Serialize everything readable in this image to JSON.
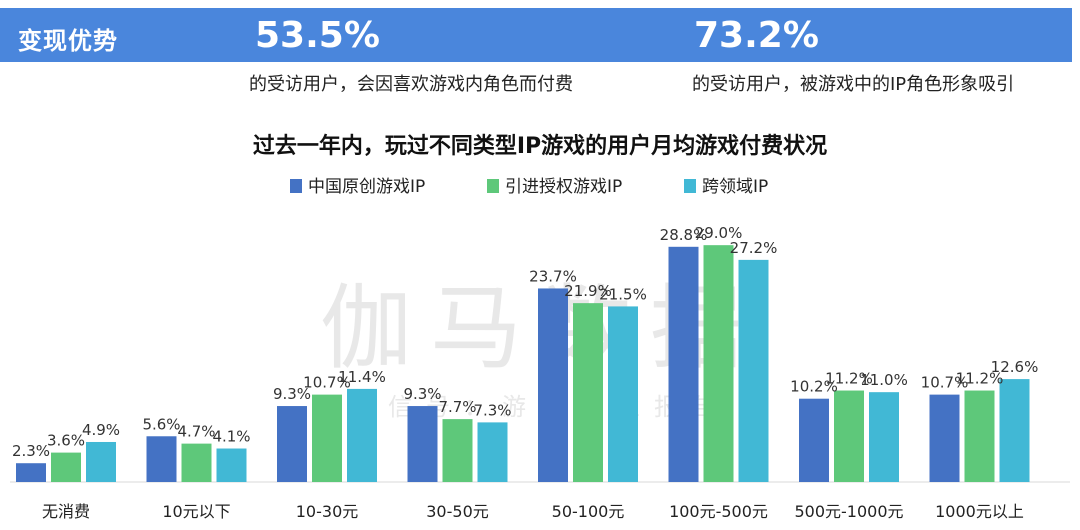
{
  "banner": {
    "title": "变现优势",
    "stat_1": {
      "value": "53.5%",
      "desc": "的受访用户，会因喜欢游戏内角色而付费"
    },
    "stat_2": {
      "value": "73.2%",
      "desc": "的受访用户，被游戏中的IP角色形象吸引"
    },
    "color": "#4a86dc"
  },
  "watermark": {
    "main": "伽马数据",
    "sub": "微信号：游戏产业报告"
  },
  "chart_data": {
    "type": "bar",
    "title": "过去一年内，玩过不同类型IP游戏的用户月均游戏付费状况",
    "categories": [
      "无消费",
      "10元以下",
      "10-30元",
      "30-50元",
      "50-100元",
      "100元-500元",
      "500元-1000元",
      "1000元以上"
    ],
    "series": [
      {
        "name": "中国原创游戏IP",
        "color": "#4472c4",
        "values": [
          2.3,
          5.6,
          9.3,
          9.3,
          23.7,
          28.8,
          10.2,
          10.7
        ]
      },
      {
        "name": "引进授权游戏IP",
        "color": "#5ec87a",
        "values": [
          3.6,
          4.7,
          10.7,
          7.7,
          21.9,
          29.0,
          11.2,
          11.2
        ]
      },
      {
        "name": "跨领域IP",
        "color": "#41b8d5",
        "values": [
          4.9,
          4.1,
          11.4,
          7.3,
          21.5,
          27.2,
          11.0,
          12.6
        ]
      }
    ],
    "value_format": "{v}%",
    "xlabel": "",
    "ylabel": "",
    "ylim": [
      0,
      30
    ],
    "grid": false,
    "legend": "top-center"
  }
}
